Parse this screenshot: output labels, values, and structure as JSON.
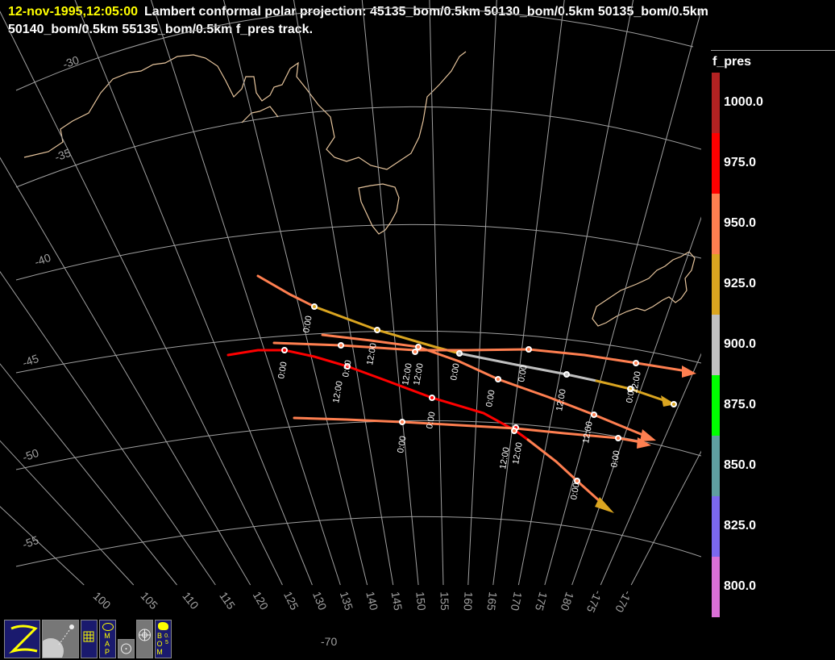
{
  "header": {
    "datetime": "12-nov-1995,12:05:00",
    "line1": "Lambert conformal polar projection:  45135_bom/0.5km 50130_bom/0.5km 50135_bom/0.5km",
    "line2": "50140_bom/0.5km 55135_bom/0.5km f_pres track."
  },
  "map": {
    "lat_labels": [
      "-30",
      "-35",
      "-40",
      "-45",
      "-50",
      "-55"
    ],
    "lon_labels": [
      "100",
      "105",
      "110",
      "115",
      "120",
      "125",
      "130",
      "135",
      "140",
      "145",
      "150",
      "155",
      "160",
      "165",
      "170",
      "175",
      "180",
      "-175",
      "-170"
    ],
    "bottom_label": "-70",
    "tracks": [
      {
        "name": "45135_bom",
        "time_labels": [
          "0:00",
          "12:00",
          "0:00",
          "12:00",
          "0:00"
        ]
      },
      {
        "name": "50130_bom",
        "time_labels": [
          "0:00",
          "12:00",
          "0:00",
          "12:00"
        ]
      },
      {
        "name": "50135_bom",
        "time_labels": [
          "12:00",
          "0:00",
          "12:00"
        ]
      },
      {
        "name": "50140_bom",
        "time_labels": [
          "0:00",
          "12:00",
          "0:00",
          "12:00",
          "0:00"
        ]
      },
      {
        "name": "55135_bom",
        "time_labels": [
          "0:00",
          "12:00",
          "0:00"
        ]
      }
    ]
  },
  "legend": {
    "title": "f_pres",
    "entries": [
      {
        "label": "1000.0",
        "color": "#b22222"
      },
      {
        "label": "975.0",
        "color": "#ff0000"
      },
      {
        "label": "950.0",
        "color": "#ff7f50"
      },
      {
        "label": "925.0",
        "color": "#daa520"
      },
      {
        "label": "900.0",
        "color": "#c0c0c0"
      },
      {
        "label": "875.0",
        "color": "#00ff00"
      },
      {
        "label": "850.0",
        "color": "#5f9ea0"
      },
      {
        "label": "825.0",
        "color": "#7b68ee"
      },
      {
        "label": "800.0",
        "color": "#da70d6"
      }
    ]
  },
  "toolbar": {
    "buttons": [
      "zoom-tool",
      "satellite-tool",
      "grid-tool",
      "map-tool",
      "point-tool",
      "radar-tool",
      "bom-tool"
    ],
    "map_label": "MAP",
    "bom_label": "BOM",
    "bom_sub": "0.5"
  },
  "colors": {
    "coast": "#e6c49c",
    "grid": "#a0a0a0",
    "date": "#ffff00"
  }
}
